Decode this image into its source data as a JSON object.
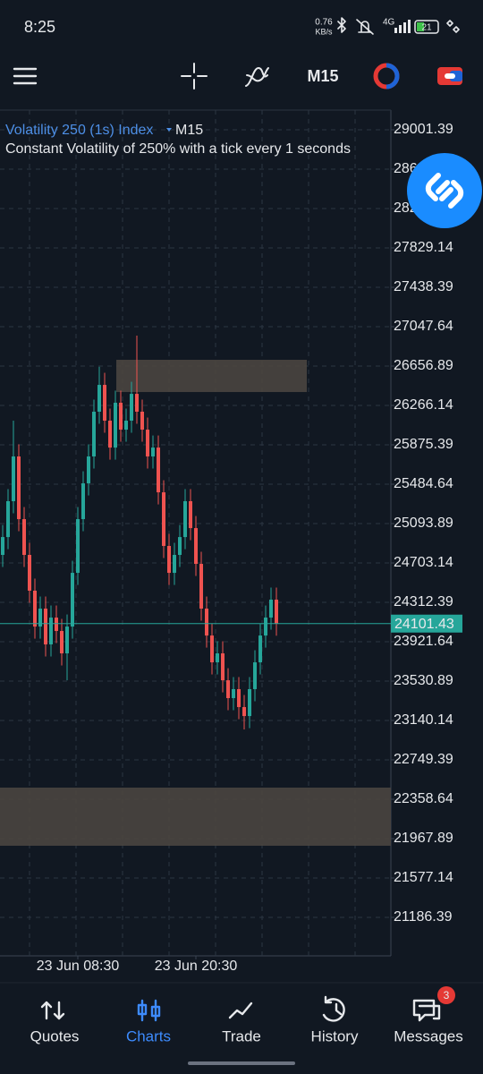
{
  "status_bar": {
    "time": "8:25",
    "speed": "0.76",
    "speed_unit": "KB/s",
    "network": "4G",
    "battery": "21"
  },
  "toolbar": {
    "timeframe": "M15"
  },
  "chart_data": {
    "type": "candlestick",
    "title": "Volatility 250 (1s) Index",
    "timeframe": "M15",
    "subtitle": "Constant Volatility of 250% with a tick every 1 seconds",
    "up_color": "#26a69a",
    "down_color": "#ef5350",
    "grid": true,
    "ylim": [
      20804.43,
      29196.77
    ],
    "yticks": [
      29001.39,
      28610.64,
      28219.89,
      27829.14,
      27438.39,
      27047.64,
      26656.89,
      26266.14,
      25875.39,
      25484.64,
      25093.89,
      24703.14,
      24312.39,
      23921.64,
      23530.89,
      23140.14,
      22749.39,
      22358.64,
      21967.89,
      21577.14,
      21186.39
    ],
    "xlim": [
      -0.5,
      72.33
    ],
    "xticks": [
      {
        "value": 14,
        "label": "23 Jun 08:30"
      },
      {
        "value": 36,
        "label": "23 Jun 20:30"
      }
    ],
    "open": [
      24783,
      24960,
      25316,
      25760,
      25138,
      24783,
      24428,
      24072,
      24250,
      23895,
      24161,
      24028,
      23806,
      24072,
      24605,
      25138,
      25493,
      25760,
      26204,
      26470,
      26115,
      25848,
      26293,
      26026,
      26115,
      26381,
      26204,
      26026,
      25760,
      25848,
      25404,
      24872,
      24605,
      24783,
      24960,
      25316,
      25049,
      24694,
      24250,
      23983,
      23717,
      23806,
      23539,
      23362,
      23451,
      23273,
      23184,
      23451,
      23717,
      23983,
      24161,
      24339
    ],
    "high": [
      25080,
      25436,
      26115,
      25880,
      25258,
      24903,
      24548,
      24370,
      24370,
      24281,
      24281,
      24148,
      24192,
      24725,
      25258,
      25613,
      25880,
      26324,
      26650,
      26590,
      26235,
      26413,
      26413,
      26235,
      26501,
      26959,
      26324,
      26146,
      25968,
      25968,
      25524,
      24992,
      24903,
      25080,
      25436,
      25436,
      25169,
      24814,
      24370,
      24103,
      23926,
      23926,
      23659,
      23571,
      23571,
      23393,
      23571,
      23837,
      24103,
      24281,
      24459,
      24459
    ],
    "low": [
      24663,
      24840,
      25196,
      25018,
      24663,
      24308,
      23952,
      23952,
      23775,
      23775,
      23908,
      23686,
      23539,
      23952,
      24485,
      25018,
      25373,
      25640,
      26084,
      25995,
      25728,
      25728,
      25906,
      25906,
      25995,
      26084,
      25906,
      25640,
      25640,
      25284,
      24752,
      24485,
      24485,
      24663,
      24840,
      24929,
      24574,
      24130,
      23863,
      23597,
      23597,
      23419,
      23242,
      23242,
      23153,
      23051,
      23064,
      23331,
      23597,
      23863,
      24041,
      23981
    ],
    "close": [
      24960,
      25316,
      25760,
      25138,
      24783,
      24428,
      24072,
      24250,
      23895,
      24161,
      24028,
      23806,
      24072,
      24605,
      25138,
      25493,
      25760,
      26204,
      26470,
      26115,
      25848,
      26293,
      26026,
      26115,
      26381,
      26204,
      26026,
      25760,
      25848,
      25404,
      24872,
      24605,
      24783,
      24960,
      25316,
      25049,
      24694,
      24250,
      23983,
      23717,
      23806,
      23539,
      23362,
      23451,
      23273,
      23184,
      23451,
      23717,
      23983,
      24161,
      24339,
      24101
    ],
    "zones": [
      {
        "start": 21.17,
        "end": 56.67,
        "top": 26719,
        "bottom": 26399
      },
      {
        "start": -0.5,
        "end": 72.33,
        "top": 22474,
        "bottom": 21897
      }
    ],
    "current_price": 24101.43,
    "current_color": "#26a69a"
  },
  "nav": {
    "items": [
      "Quotes",
      "Charts",
      "Trade",
      "History",
      "Messages"
    ],
    "active": 1,
    "badge": 3
  }
}
